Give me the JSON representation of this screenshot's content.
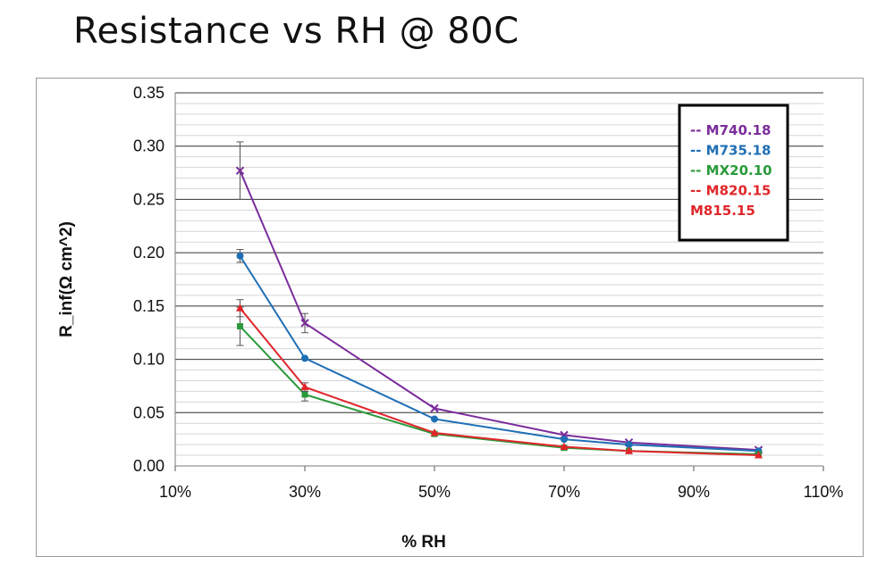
{
  "title": "Resistance vs RH @ 80C",
  "chart_data": {
    "type": "line",
    "title": "Resistance vs RH @ 80C",
    "xlabel": "% RH",
    "ylabel": "R_inf(Ω cm^2)",
    "xlim": [
      10,
      110
    ],
    "ylim": [
      0,
      0.35
    ],
    "x_ticks": [
      "10%",
      "30%",
      "50%",
      "70%",
      "90%",
      "110%"
    ],
    "y_ticks": [
      "0.00",
      "0.05",
      "0.10",
      "0.15",
      "0.20",
      "0.25",
      "0.30",
      "0.35"
    ],
    "grid": true,
    "legend_position": "top-right",
    "series": [
      {
        "name": "M740.18",
        "legend_label": "-- M740.18",
        "color": "#7b2d9b",
        "marker": "x",
        "x": [
          20,
          30,
          50,
          70,
          80,
          100
        ],
        "values": [
          0.277,
          0.134,
          0.054,
          0.029,
          0.022,
          0.015
        ],
        "error_bars": [
          0.027,
          0.009,
          0,
          0,
          0,
          0
        ]
      },
      {
        "name": "M735.18",
        "legend_label": "-- M735.18",
        "color": "#1f6fb5",
        "marker": "circle",
        "x": [
          20,
          30,
          50,
          70,
          80,
          100
        ],
        "values": [
          0.197,
          0.101,
          0.044,
          0.025,
          0.02,
          0.014
        ],
        "error_bars": [
          0.006,
          0,
          0,
          0,
          0,
          0
        ]
      },
      {
        "name": "MX20.10",
        "legend_label": "-- MX20.10",
        "color": "#2a9a3a",
        "marker": "square",
        "x": [
          20,
          30,
          50,
          70,
          80,
          100
        ],
        "values": [
          0.131,
          0.067,
          0.03,
          0.017,
          0.014,
          0.011
        ],
        "error_bars": [
          0.018,
          0.006,
          0,
          0,
          0,
          0
        ]
      },
      {
        "name": "M820.15",
        "legend_label": "-- M820.15",
        "color": "#e0262b",
        "marker": "triangle",
        "x": [
          20,
          30,
          50,
          70,
          80,
          100
        ],
        "values": [
          0.148,
          0.074,
          0.031,
          0.018,
          0.014,
          0.01
        ],
        "error_bars": [
          0.008,
          0.004,
          0,
          0,
          0,
          0
        ]
      }
    ],
    "legend_extra": {
      "text": "M815.15",
      "color": "#e0262b"
    }
  }
}
